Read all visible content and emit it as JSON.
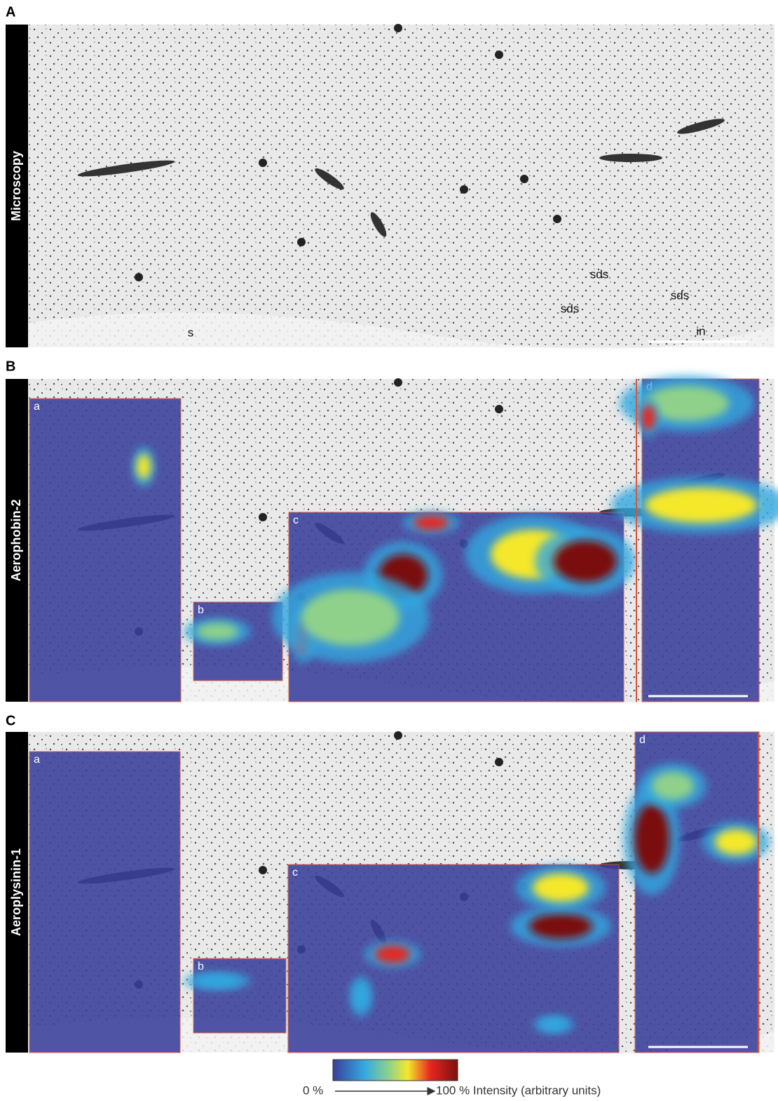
{
  "panels": [
    {
      "label": "A",
      "title": "Microscopy",
      "annotations": [
        "s",
        "sds",
        "sds",
        "sds",
        "in"
      ]
    },
    {
      "label": "B",
      "title": "Aerophobin-2",
      "regions": [
        "a",
        "b",
        "c",
        "d"
      ]
    },
    {
      "label": "C",
      "title": "Aeroplysinin-1",
      "regions": [
        "a",
        "b",
        "c",
        "d"
      ]
    }
  ],
  "colorbar": {
    "min_label": "0 %",
    "max_label": "100 % Intensity (arbitrary units)"
  }
}
